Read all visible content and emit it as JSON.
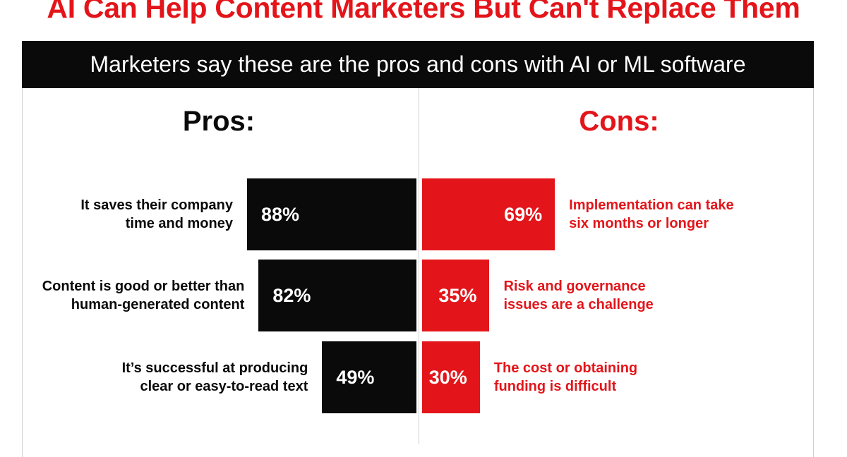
{
  "title": "AI Can Help Content Marketers But Can't Replace Them",
  "banner": "Marketers say these are the pros and cons with AI or ML software",
  "colors": {
    "accent": "#e3151a",
    "dark": "#0a0a0a"
  },
  "chart_data": {
    "type": "bar",
    "orientation": "horizontal-diverging",
    "unit": "%",
    "pros": {
      "heading": "Pros:",
      "categories": [
        "It saves their company\ntime and money",
        "Content is good or better than\nhuman-generated content",
        "It’s successful at producing\nclear or easy-to-read text"
      ],
      "values": [
        88,
        82,
        49
      ],
      "value_labels": [
        "88%",
        "82%",
        "49%"
      ]
    },
    "cons": {
      "heading": "Cons:",
      "categories": [
        "Implementation can take\nsix months or longer",
        "Risk and governance\nissues are a challenge",
        "The cost or obtaining\nfunding is difficult"
      ],
      "values": [
        69,
        35,
        30
      ],
      "value_labels": [
        "69%",
        "35%",
        "30%"
      ]
    },
    "xlim": [
      0,
      100
    ],
    "grid": false,
    "legend": "none"
  }
}
